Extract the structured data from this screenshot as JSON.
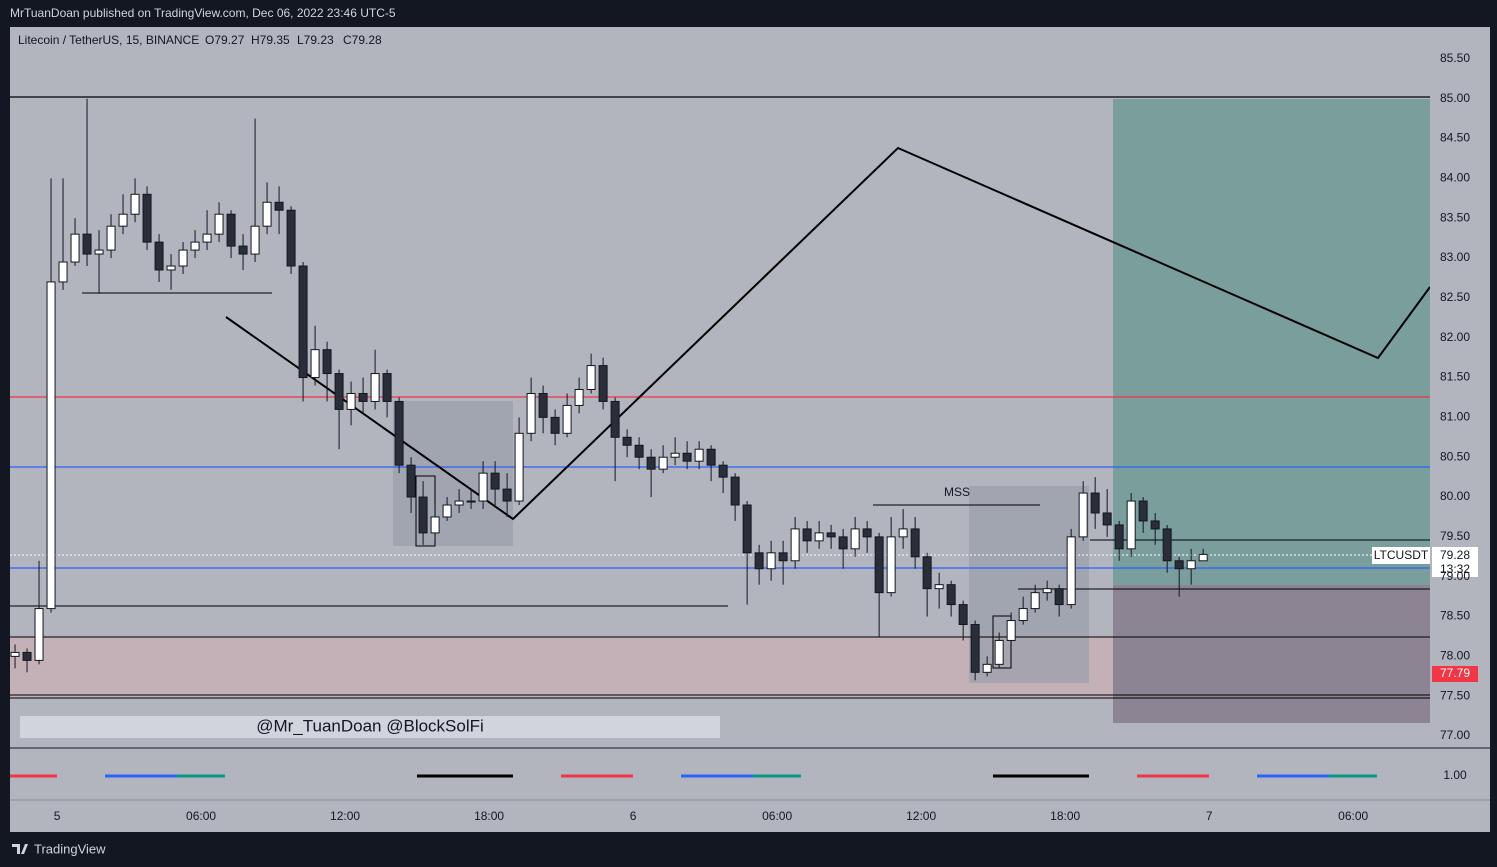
{
  "header": {
    "publisher": "MrTuanDoan published on TradingView.com, Dec 06, 2022 23:46 UTC-5"
  },
  "footer": {
    "brand": "TradingView"
  },
  "watermark": "@Mr_TuanDoan @BlockSolFi",
  "annotation": "MSS",
  "price_labels": {
    "symbol": "LTCUSDT",
    "last": "79.28",
    "countdown": "13:32",
    "marker": "77.79"
  },
  "indicator_tick": {
    "value": 1,
    "label": "1.00"
  },
  "chart_data": {
    "type": "candlestick",
    "title": "Litecoin / TetherUS, 15, BINANCE",
    "ohlc": [
      "O79.27",
      "H79.35",
      "L79.23",
      "C79.28"
    ],
    "up_color": "#ffffff",
    "down_color": "#2a2e39",
    "xlim": [
      -1.96,
      57.2
    ],
    "ylim": [
      76.85,
      85.9
    ],
    "xticks": [
      {
        "value": 0,
        "label": "5"
      },
      {
        "value": 6,
        "label": "06:00"
      },
      {
        "value": 12,
        "label": "12:00"
      },
      {
        "value": 18,
        "label": "18:00"
      },
      {
        "value": 24,
        "label": "6"
      },
      {
        "value": 30,
        "label": "06:00"
      },
      {
        "value": 36,
        "label": "12:00"
      },
      {
        "value": 42,
        "label": "18:00"
      },
      {
        "value": 48,
        "label": "7"
      },
      {
        "value": 54,
        "label": "06:00"
      }
    ],
    "yticks": [
      {
        "value": 77,
        "label": "77.00"
      },
      {
        "value": 77.5,
        "label": "77.50"
      },
      {
        "value": 78,
        "label": "78.00"
      },
      {
        "value": 78.5,
        "label": "78.50"
      },
      {
        "value": 79,
        "label": "79.00"
      },
      {
        "value": 79.5,
        "label": "79.50"
      },
      {
        "value": 80,
        "label": "80.00"
      },
      {
        "value": 80.5,
        "label": "80.50"
      },
      {
        "value": 81,
        "label": "81.00"
      },
      {
        "value": 81.5,
        "label": "81.50"
      },
      {
        "value": 82,
        "label": "82.00"
      },
      {
        "value": 82.5,
        "label": "82.50"
      },
      {
        "value": 83,
        "label": "83.00"
      },
      {
        "value": 83.5,
        "label": "83.50"
      },
      {
        "value": 84,
        "label": "84.00"
      },
      {
        "value": 84.5,
        "label": "84.50"
      },
      {
        "value": 85,
        "label": "85.00"
      },
      {
        "value": 85.5,
        "label": "85.50"
      }
    ],
    "x": [
      -1.75,
      -1.25,
      -0.75,
      -0.25,
      0.25,
      0.75,
      1.25,
      1.75,
      2.25,
      2.75,
      3.25,
      3.75,
      4.25,
      4.75,
      5.25,
      5.75,
      6.25,
      6.75,
      7.25,
      7.75,
      8.25,
      8.75,
      9.25,
      9.75,
      10.25,
      10.75,
      11.25,
      11.75,
      12.25,
      12.75,
      13.25,
      13.75,
      14.25,
      14.75,
      15.25,
      15.75,
      16.25,
      16.75,
      17.25,
      17.75,
      18.25,
      18.75,
      19.25,
      19.75,
      20.25,
      20.75,
      21.25,
      21.75,
      22.25,
      22.75,
      23.25,
      23.75,
      24.25,
      24.75,
      25.25,
      25.75,
      26.25,
      26.75,
      27.25,
      27.75,
      28.25,
      28.75,
      29.25,
      29.75,
      30.25,
      30.75,
      31.25,
      31.75,
      32.25,
      32.75,
      33.25,
      33.75,
      34.25,
      34.75,
      35.25,
      35.75,
      36.25,
      36.75,
      37.25,
      37.75,
      38.25,
      38.75,
      39.25,
      39.75,
      40.25,
      40.75,
      41.25,
      41.75,
      42.25,
      42.75,
      43.25,
      43.75,
      44.25,
      44.75,
      45.25,
      45.75,
      46.25,
      46.75,
      47.25,
      47.75
    ],
    "open": [
      78.0,
      78.05,
      77.95,
      78.6,
      82.7,
      82.95,
      83.3,
      83.05,
      83.1,
      83.4,
      83.55,
      83.8,
      83.2,
      82.85,
      82.9,
      83.1,
      83.2,
      83.3,
      83.55,
      83.15,
      83.05,
      83.4,
      83.7,
      83.6,
      82.9,
      81.5,
      81.85,
      81.55,
      81.1,
      81.3,
      81.2,
      81.55,
      81.2,
      80.4,
      80.0,
      79.55,
      79.75,
      79.9,
      79.95,
      79.95,
      80.3,
      80.1,
      79.95,
      80.8,
      81.3,
      81.0,
      80.8,
      81.15,
      81.35,
      81.65,
      81.2,
      80.75,
      80.65,
      80.5,
      80.35,
      80.5,
      80.55,
      80.45,
      80.6,
      80.4,
      80.25,
      79.9,
      79.3,
      79.1,
      79.3,
      79.2,
      79.6,
      79.45,
      79.55,
      79.5,
      79.35,
      79.6,
      79.5,
      78.8,
      79.5,
      79.6,
      79.25,
      78.85,
      78.9,
      78.65,
      78.4,
      77.8,
      77.9,
      78.2,
      78.45,
      78.6,
      78.8,
      78.85,
      78.65,
      79.5,
      80.05,
      79.8,
      79.65,
      79.35,
      79.95,
      79.7,
      79.6,
      79.2,
      79.1,
      79.2
    ],
    "high": [
      78.15,
      78.1,
      79.2,
      84.0,
      84.0,
      83.5,
      85.0,
      83.35,
      83.55,
      83.8,
      84.0,
      83.9,
      83.3,
      83.05,
      83.2,
      83.35,
      83.6,
      83.7,
      83.6,
      83.3,
      84.75,
      83.95,
      83.9,
      83.65,
      82.95,
      82.15,
      81.95,
      81.6,
      81.45,
      81.5,
      81.85,
      81.6,
      81.25,
      80.5,
      80.2,
      79.9,
      80.0,
      80.1,
      80.1,
      80.45,
      80.45,
      80.3,
      81.0,
      81.5,
      81.4,
      81.1,
      81.3,
      81.5,
      81.8,
      81.75,
      81.25,
      80.85,
      80.75,
      80.6,
      80.65,
      80.75,
      80.7,
      80.7,
      80.65,
      80.45,
      80.3,
      79.95,
      79.4,
      79.45,
      79.45,
      79.75,
      79.7,
      79.7,
      79.65,
      79.6,
      79.75,
      79.7,
      79.55,
      79.75,
      79.85,
      79.75,
      79.3,
      79.05,
      78.95,
      78.7,
      78.45,
      78.0,
      78.3,
      78.55,
      78.75,
      78.9,
      78.95,
      78.9,
      79.6,
      80.2,
      80.25,
      80.1,
      79.7,
      80.05,
      80.0,
      79.8,
      79.65,
      79.25,
      79.35,
      79.35
    ],
    "low": [
      77.85,
      77.8,
      77.9,
      78.55,
      82.6,
      82.9,
      82.9,
      82.55,
      83.0,
      83.3,
      83.45,
      83.1,
      82.7,
      82.6,
      82.8,
      83.0,
      83.1,
      83.2,
      83.0,
      82.85,
      82.95,
      83.3,
      83.3,
      82.8,
      81.2,
      81.4,
      81.2,
      80.6,
      80.9,
      81.05,
      81.1,
      81.0,
      80.3,
      79.8,
      79.4,
      79.45,
      79.7,
      79.8,
      79.85,
      79.85,
      79.9,
      79.75,
      79.9,
      80.7,
      80.8,
      80.65,
      80.75,
      81.05,
      81.3,
      81.1,
      80.2,
      80.5,
      80.35,
      80.0,
      80.3,
      80.4,
      80.35,
      80.35,
      80.2,
      80.05,
      79.7,
      78.65,
      78.9,
      78.95,
      78.9,
      79.1,
      79.3,
      79.35,
      79.35,
      79.1,
      79.25,
      79.3,
      78.25,
      78.75,
      79.35,
      79.1,
      78.5,
      78.6,
      78.5,
      78.2,
      77.7,
      77.75,
      77.85,
      78.15,
      78.4,
      78.55,
      78.7,
      78.5,
      78.6,
      79.45,
      79.6,
      79.5,
      79.2,
      79.25,
      79.55,
      79.4,
      79.05,
      78.75,
      78.9,
      79.23
    ],
    "close": [
      78.05,
      77.95,
      78.6,
      82.7,
      82.95,
      83.3,
      83.05,
      83.1,
      83.4,
      83.55,
      83.8,
      83.2,
      82.85,
      82.9,
      83.1,
      83.2,
      83.3,
      83.55,
      83.15,
      83.05,
      83.4,
      83.7,
      83.6,
      82.9,
      81.5,
      81.85,
      81.55,
      81.1,
      81.3,
      81.2,
      81.55,
      81.2,
      80.4,
      80.0,
      79.55,
      79.75,
      79.9,
      79.95,
      79.95,
      80.3,
      80.1,
      79.95,
      80.8,
      81.3,
      81.0,
      80.8,
      81.15,
      81.35,
      81.65,
      81.2,
      80.75,
      80.65,
      80.5,
      80.35,
      80.5,
      80.55,
      80.45,
      80.6,
      80.4,
      80.25,
      79.9,
      79.3,
      79.1,
      79.3,
      79.2,
      79.6,
      79.45,
      79.55,
      79.5,
      79.35,
      79.6,
      79.5,
      78.8,
      79.5,
      79.6,
      79.25,
      78.85,
      78.9,
      78.65,
      78.4,
      77.8,
      77.9,
      78.2,
      78.45,
      78.6,
      78.8,
      78.85,
      78.65,
      79.5,
      80.05,
      79.8,
      79.65,
      79.35,
      79.95,
      79.7,
      79.6,
      79.2,
      79.1,
      79.2,
      79.28
    ]
  }
}
